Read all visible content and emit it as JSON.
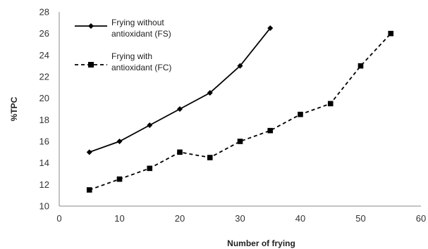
{
  "chart_data": {
    "type": "line",
    "title": "",
    "xlabel": "Number of frying",
    "ylabel": "%TPC",
    "xlim": [
      0,
      60
    ],
    "ylim": [
      10,
      28
    ],
    "xticks": [
      "0",
      "10",
      "20",
      "30",
      "40",
      "50",
      "60"
    ],
    "yticks": [
      "10",
      "12",
      "14",
      "16",
      "18",
      "20",
      "22",
      "24",
      "26",
      "28"
    ],
    "grid": false,
    "legend_position": "top-left",
    "series": [
      {
        "name_line1": "Frying without",
        "name_line2": "antioxidant (FS)",
        "style": "solid",
        "marker": "diamond",
        "color": "#000000",
        "x": [
          5,
          10,
          15,
          20,
          25,
          30,
          35
        ],
        "y": [
          15,
          16,
          17.5,
          19,
          20.5,
          23,
          26.5
        ]
      },
      {
        "name_line1": "Frying with",
        "name_line2": "antioxidant (FC)",
        "style": "dashed",
        "marker": "square",
        "color": "#000000",
        "x": [
          5,
          10,
          15,
          20,
          25,
          30,
          35,
          40,
          45,
          50,
          55
        ],
        "y": [
          11.5,
          12.5,
          13.5,
          15,
          14.5,
          16,
          17,
          18.5,
          19.5,
          23,
          26
        ]
      }
    ]
  }
}
